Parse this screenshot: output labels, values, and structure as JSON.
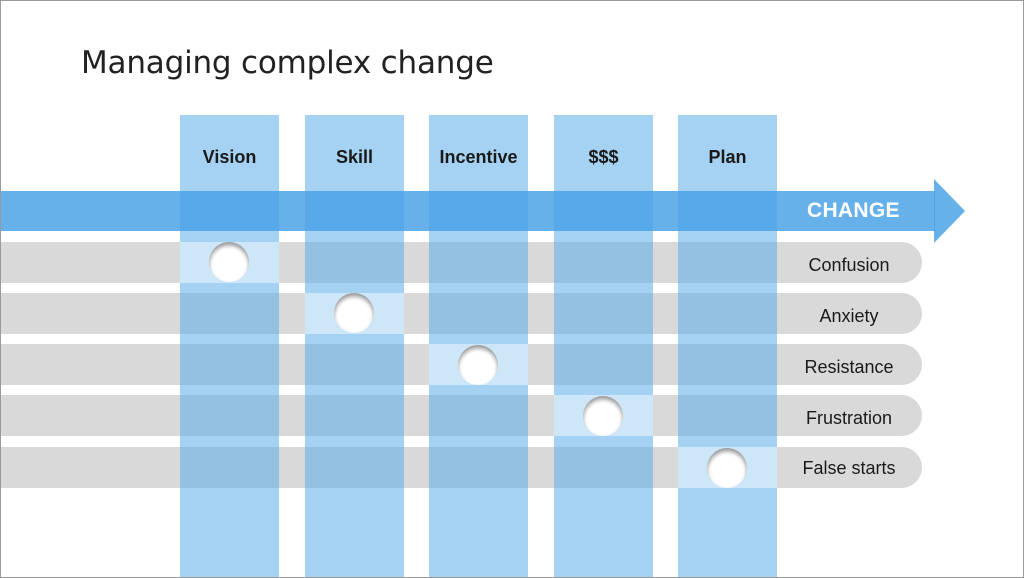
{
  "title": "Managing complex change",
  "arrow": {
    "label": "CHANGE",
    "color": "#46a0e6"
  },
  "columns": [
    {
      "label": "Vision"
    },
    {
      "label": "Skill"
    },
    {
      "label": "Incentive"
    },
    {
      "label": "$$$"
    },
    {
      "label": "Plan"
    }
  ],
  "rows": [
    {
      "label": "Confusion",
      "missing": "Vision"
    },
    {
      "label": "Anxiety",
      "missing": "Skill"
    },
    {
      "label": "Resistance",
      "missing": "Incentive"
    },
    {
      "label": "Frustration",
      "missing": "$$$"
    },
    {
      "label": "False starts",
      "missing": "Plan"
    }
  ],
  "colors": {
    "column": "#5babe8",
    "row": "#d9d9d9",
    "background": "#ffffff"
  }
}
